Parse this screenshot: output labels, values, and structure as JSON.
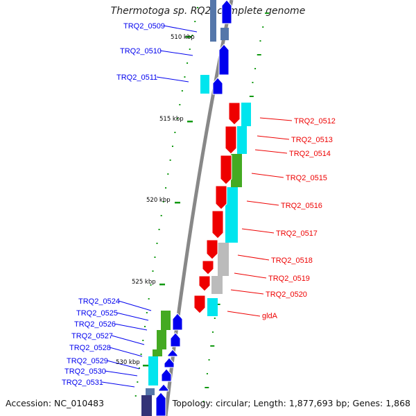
{
  "title": "Thermotoga sp. RQ2, complete genome",
  "accession_text": "Accession: NC_010483",
  "summary_text": "Topology: circular; Length: 1,877,693 bp; Genes: 1,868",
  "colors": {
    "plus_strand": "#0000ee",
    "minus_strand": "#ee0000",
    "backbone": "#888888",
    "ticks": "#119911",
    "cog_cyan": "#00e5ee",
    "cog_green": "#44aa22",
    "cog_grey": "#bbbbbb",
    "cog_navy": "#333377",
    "cog_steel": "#5577aa"
  },
  "scale_labels": [
    "510 kbp",
    "515 kbp",
    "520 kbp",
    "525 kbp",
    "530 kbp"
  ],
  "gene_labels_plus": [
    "TRQ2_0509",
    "TRQ2_0510",
    "TRQ2_0511",
    "TRQ2_0524",
    "TRQ2_0525",
    "TRQ2_0526",
    "TRQ2_0527",
    "TRQ2_0528",
    "TRQ2_0529",
    "TRQ2_0530",
    "TRQ2_0531"
  ],
  "gene_labels_minus": [
    "TRQ2_0512",
    "TRQ2_0513",
    "TRQ2_0514",
    "TRQ2_0515",
    "TRQ2_0516",
    "TRQ2_0517",
    "TRQ2_0518",
    "TRQ2_0519",
    "TRQ2_0520",
    "gldA"
  ]
}
